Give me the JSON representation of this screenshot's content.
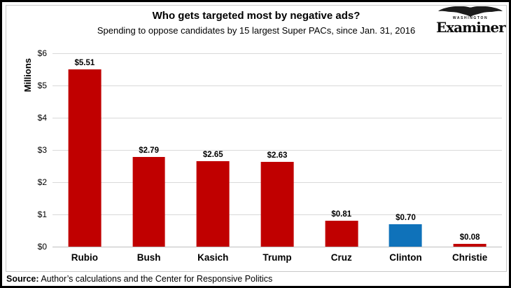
{
  "header": {
    "title": "Who gets targeted most by negative ads?",
    "subtitle": "Spending to oppose candidates by 15 largest Super PACs, since Jan. 31, 2016"
  },
  "logo": {
    "location": "WASHINGTON",
    "name": "Examiner"
  },
  "chart_data": {
    "type": "bar",
    "categories": [
      "Rubio",
      "Bush",
      "Kasich",
      "Trump",
      "Cruz",
      "Clinton",
      "Christie"
    ],
    "values": [
      5.51,
      2.79,
      2.65,
      2.63,
      0.81,
      0.7,
      0.08
    ],
    "value_labels": [
      "$5.51",
      "$2.79",
      "$2.65",
      "$2.63",
      "$0.81",
      "$0.70",
      "$0.08"
    ],
    "bar_colors": [
      "#c00000",
      "#c00000",
      "#c00000",
      "#c00000",
      "#c00000",
      "#0f72ba",
      "#c00000"
    ],
    "title": "Who gets targeted most by negative ads?",
    "xlabel": "",
    "ylabel": "Millions",
    "yticks": [
      "$0",
      "$1",
      "$2",
      "$3",
      "$4",
      "$5",
      "$6"
    ],
    "ylim": [
      0,
      6
    ],
    "grid": true,
    "legend": "none",
    "colors": {
      "bar_red": "#c00000",
      "bar_blue": "#0f72ba",
      "gridline": "#d9d9d9",
      "axis_line": "#bfbfbf"
    }
  },
  "source": {
    "label": "Source:",
    "text": " Author’s calculations and the Center for Responsive Politics"
  }
}
